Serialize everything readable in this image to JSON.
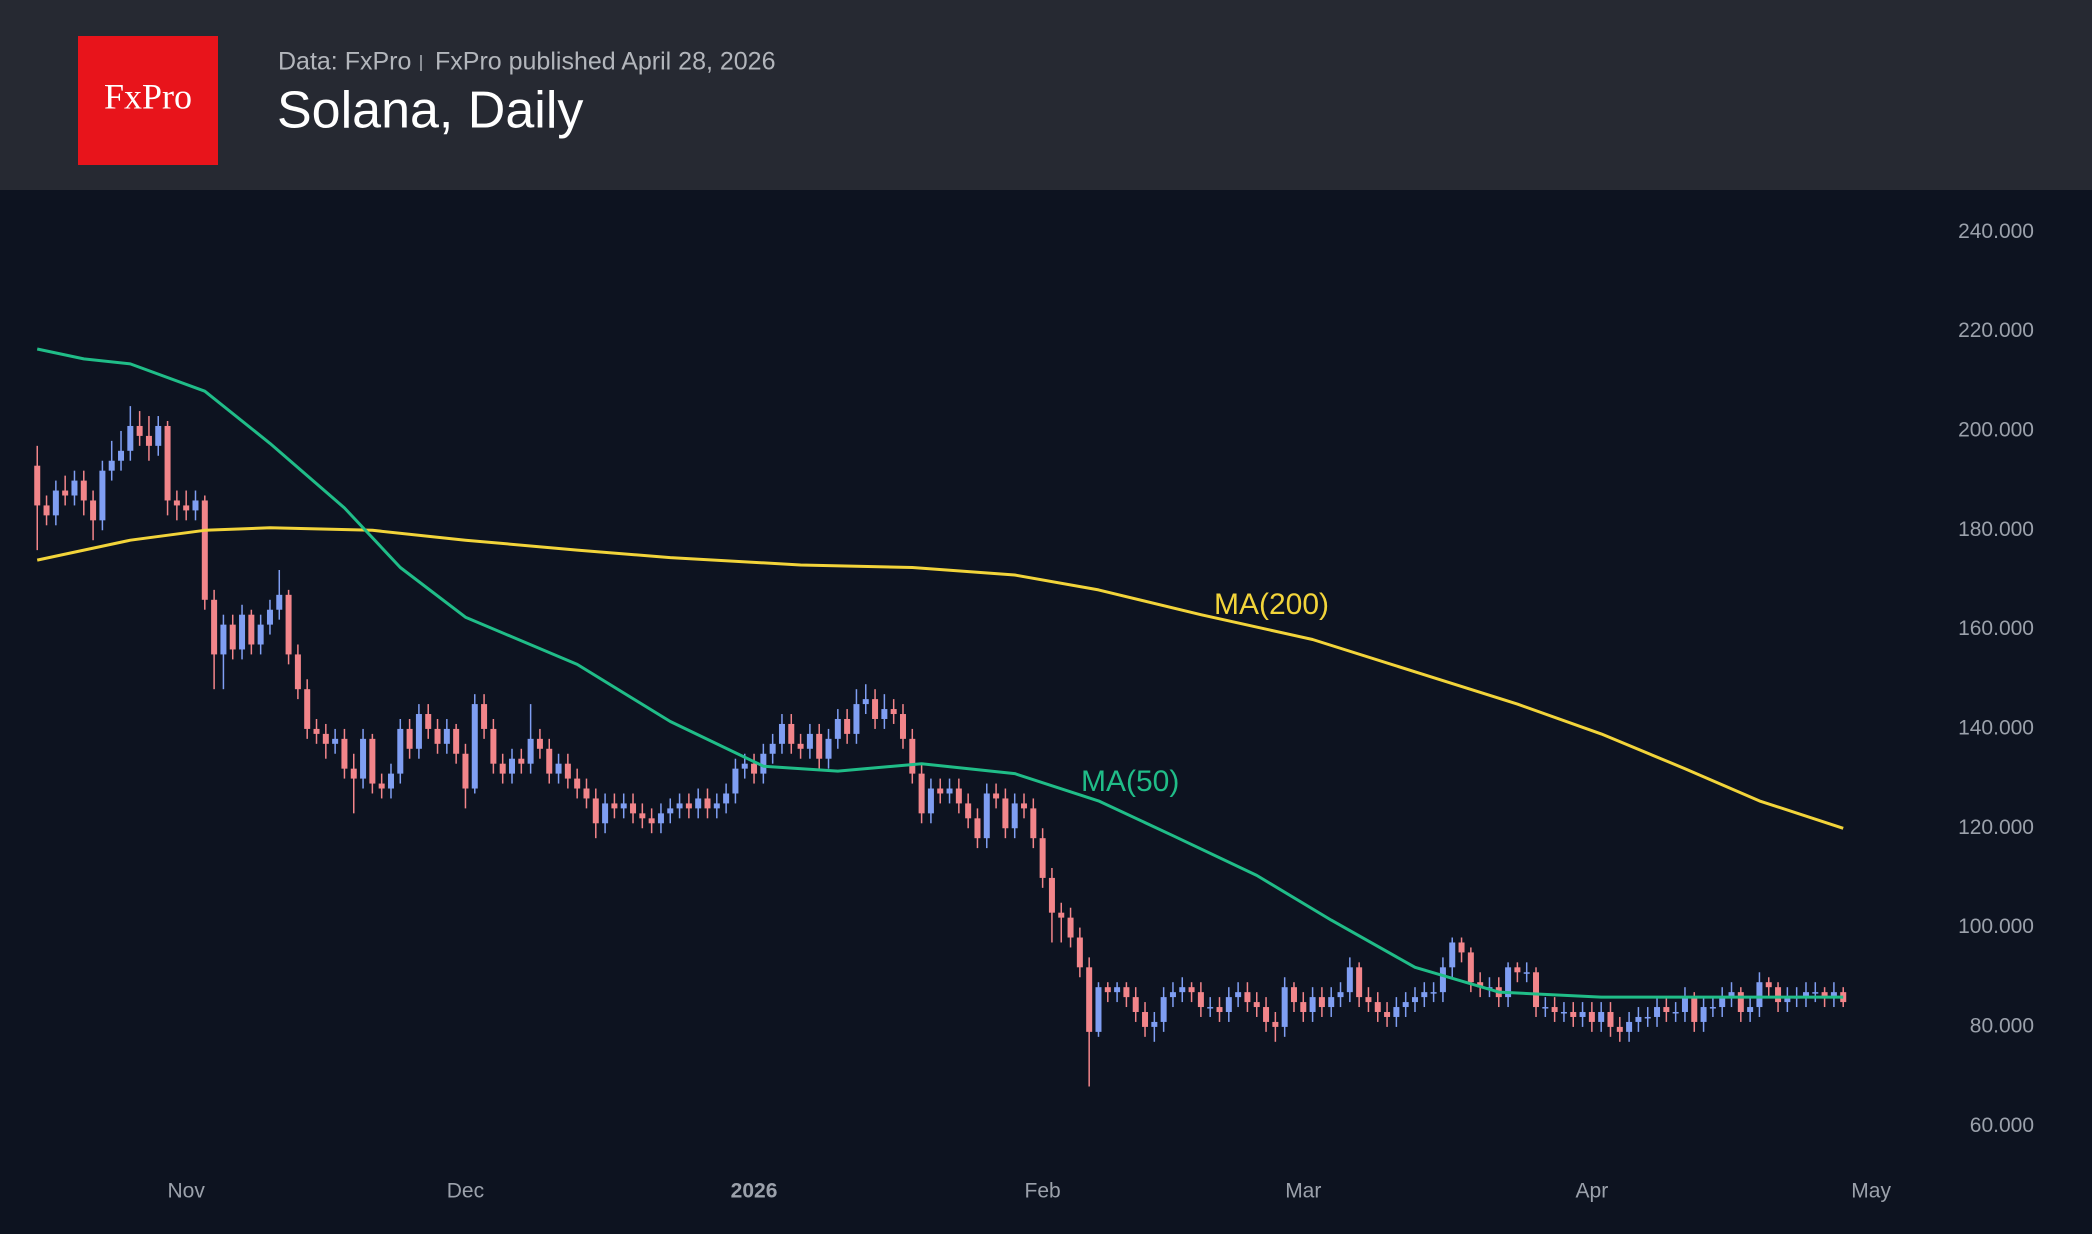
{
  "chart_data": {
    "type": "candlestick",
    "logo": "FxPro",
    "source": "Data: FxPro",
    "published": "FxPro published April 28, 2026",
    "title": "Solana, Daily",
    "up_color": "#7f9ef2",
    "down_color": "#f2858a",
    "x": [
      0,
      1,
      2,
      3,
      4,
      5,
      6,
      7,
      8,
      9,
      10,
      11,
      12,
      13,
      14,
      15,
      16,
      17,
      18,
      19,
      20,
      21,
      22,
      23,
      24,
      25,
      26,
      27,
      28,
      29,
      30,
      31,
      32,
      33,
      34,
      35,
      36,
      37,
      38,
      39,
      40,
      41,
      42,
      43,
      44,
      45,
      46,
      47,
      48,
      49,
      50,
      51,
      52,
      53,
      54,
      55,
      56,
      57,
      58,
      59,
      60,
      61,
      62,
      63,
      64,
      65,
      66,
      67,
      68,
      69,
      70,
      71,
      72,
      73,
      74,
      75,
      76,
      77,
      78,
      79,
      80,
      81,
      82,
      83,
      84,
      85,
      86,
      87,
      88,
      89,
      90,
      91,
      92,
      93,
      94,
      95,
      96,
      97,
      98,
      99,
      100,
      101,
      102,
      103,
      104,
      105,
      106,
      107,
      108,
      109,
      110,
      111,
      112,
      113,
      114,
      115,
      116,
      117,
      118,
      119,
      120,
      121,
      122,
      123,
      124,
      125,
      126,
      127,
      128,
      129,
      130,
      131,
      132,
      133,
      134,
      135,
      136,
      137,
      138,
      139,
      140,
      141,
      142,
      143,
      144,
      145,
      146,
      147,
      148,
      149,
      150,
      151,
      152,
      153,
      154,
      155,
      156,
      157,
      158,
      159,
      160,
      161,
      162,
      163,
      164,
      165,
      166,
      167,
      168,
      169,
      170,
      171,
      172,
      173,
      174,
      175,
      176,
      177,
      178,
      179,
      180,
      181,
      182,
      183,
      184,
      185,
      186,
      187,
      188,
      189,
      190,
      191,
      192,
      193,
      194
    ],
    "open": [
      193,
      185,
      183,
      188,
      187,
      190,
      186,
      182,
      192,
      194,
      196,
      201,
      199,
      197,
      201,
      186,
      185,
      184,
      186,
      166,
      155,
      161,
      156,
      163,
      157,
      161,
      164,
      167,
      155,
      148,
      140,
      139,
      137,
      138,
      132,
      130,
      138,
      129,
      128,
      131,
      140,
      136,
      143,
      140,
      137,
      140,
      135,
      128,
      145,
      140,
      133,
      131,
      134,
      133,
      138,
      136,
      131,
      133,
      130,
      128,
      126,
      121,
      125,
      124,
      125,
      123,
      122,
      121,
      123,
      124,
      125,
      124,
      126,
      124,
      125,
      127,
      132,
      133,
      131,
      135,
      137,
      141,
      137,
      136,
      139,
      134,
      138,
      142,
      139,
      145,
      146,
      142,
      144,
      143,
      138,
      131,
      123,
      128,
      127,
      128,
      125,
      122,
      118,
      127,
      126,
      120,
      125,
      124,
      118,
      110,
      103,
      102,
      98,
      92,
      79,
      88,
      87,
      88,
      86,
      83,
      80,
      81,
      86,
      87,
      88,
      87,
      84,
      84,
      83,
      86,
      87,
      85,
      84,
      81,
      80,
      88,
      85,
      83,
      86,
      84,
      86,
      87,
      92,
      86,
      85,
      83,
      82,
      84,
      85,
      86,
      87,
      87,
      92,
      97,
      95,
      89,
      88,
      88,
      86,
      92,
      91,
      91,
      84,
      84,
      83,
      83,
      82,
      83,
      81,
      83,
      80,
      79,
      81,
      82,
      82,
      84,
      83,
      83,
      86,
      81,
      84,
      84,
      86,
      87,
      83,
      84,
      89,
      88,
      85,
      86,
      86,
      87,
      87,
      86,
      87
    ],
    "high": [
      197,
      187,
      190,
      191,
      192,
      192,
      188,
      194,
      198,
      200,
      205,
      204,
      203,
      203,
      202,
      188,
      188,
      188,
      187,
      168,
      163,
      163,
      165,
      164,
      163,
      166,
      172,
      168,
      157,
      150,
      142,
      141,
      140,
      140,
      135,
      140,
      139,
      131,
      133,
      142,
      142,
      145,
      145,
      142,
      142,
      141,
      137,
      147,
      147,
      142,
      135,
      136,
      136,
      145,
      140,
      138,
      135,
      135,
      132,
      130,
      128,
      127,
      127,
      127,
      127,
      125,
      124,
      125,
      126,
      127,
      127,
      128,
      128,
      127,
      129,
      134,
      135,
      135,
      137,
      139,
      143,
      143,
      139,
      141,
      141,
      140,
      144,
      144,
      148,
      149,
      148,
      147,
      146,
      145,
      140,
      133,
      130,
      130,
      130,
      130,
      127,
      124,
      129,
      129,
      128,
      127,
      127,
      126,
      120,
      112,
      105,
      104,
      100,
      94,
      89,
      89,
      89,
      89,
      88,
      85,
      83,
      88,
      89,
      90,
      89,
      89,
      86,
      86,
      88,
      89,
      89,
      87,
      86,
      83,
      90,
      89,
      87,
      88,
      88,
      88,
      89,
      94,
      93,
      88,
      87,
      85,
      86,
      87,
      88,
      89,
      89,
      94,
      98,
      98,
      96,
      91,
      90,
      90,
      93,
      93,
      93,
      92,
      86,
      86,
      85,
      85,
      85,
      85,
      85,
      85,
      82,
      83,
      84,
      84,
      86,
      86,
      85,
      88,
      87,
      86,
      86,
      88,
      89,
      88,
      86,
      91,
      90,
      89,
      88,
      88,
      89,
      89,
      88,
      89,
      88
    ],
    "low": [
      176,
      181,
      181,
      185,
      185,
      183,
      178,
      180,
      190,
      192,
      194,
      197,
      194,
      195,
      183,
      182,
      182,
      182,
      164,
      148,
      148,
      154,
      154,
      155,
      155,
      159,
      162,
      153,
      146,
      138,
      137,
      134,
      135,
      130,
      123,
      128,
      127,
      126,
      126,
      129,
      134,
      134,
      138,
      135,
      135,
      133,
      124,
      127,
      138,
      131,
      129,
      129,
      131,
      131,
      134,
      129,
      129,
      128,
      126,
      124,
      118,
      119,
      122,
      122,
      121,
      120,
      119,
      119,
      121,
      122,
      122,
      122,
      122,
      122,
      123,
      125,
      130,
      129,
      129,
      133,
      135,
      135,
      134,
      134,
      132,
      132,
      136,
      137,
      137,
      143,
      140,
      140,
      141,
      136,
      129,
      121,
      121,
      125,
      125,
      123,
      120,
      116,
      116,
      124,
      118,
      118,
      122,
      116,
      108,
      97,
      97,
      96,
      90,
      68,
      78,
      85,
      85,
      84,
      81,
      78,
      77,
      79,
      84,
      85,
      85,
      82,
      82,
      81,
      81,
      84,
      83,
      82,
      79,
      77,
      78,
      83,
      81,
      81,
      82,
      82,
      84,
      85,
      84,
      83,
      81,
      80,
      80,
      82,
      83,
      84,
      85,
      85,
      90,
      93,
      87,
      86,
      86,
      84,
      84,
      89,
      89,
      82,
      82,
      81,
      81,
      80,
      80,
      79,
      79,
      78,
      77,
      77,
      79,
      80,
      80,
      81,
      81,
      81,
      79,
      79,
      82,
      82,
      84,
      81,
      81,
      82,
      86,
      83,
      83,
      84,
      84,
      85,
      84,
      84,
      84
    ],
    "close": [
      185,
      183,
      188,
      187,
      190,
      186,
      182,
      192,
      194,
      196,
      201,
      199,
      197,
      201,
      186,
      185,
      184,
      186,
      166,
      155,
      161,
      156,
      163,
      157,
      161,
      164,
      167,
      155,
      148,
      140,
      139,
      137,
      138,
      132,
      130,
      138,
      129,
      128,
      131,
      140,
      136,
      143,
      140,
      137,
      140,
      135,
      128,
      145,
      140,
      133,
      131,
      134,
      133,
      138,
      136,
      131,
      133,
      130,
      128,
      126,
      121,
      125,
      124,
      125,
      123,
      122,
      121,
      123,
      124,
      125,
      124,
      126,
      124,
      125,
      127,
      132,
      133,
      131,
      135,
      137,
      141,
      137,
      136,
      139,
      134,
      138,
      142,
      139,
      145,
      146,
      142,
      144,
      143,
      138,
      131,
      123,
      128,
      127,
      128,
      125,
      122,
      118,
      127,
      126,
      120,
      125,
      124,
      118,
      110,
      103,
      102,
      98,
      92,
      79,
      88,
      87,
      88,
      86,
      83,
      80,
      81,
      86,
      87,
      88,
      87,
      84,
      84,
      83,
      86,
      87,
      85,
      84,
      81,
      80,
      88,
      85,
      83,
      86,
      84,
      86,
      87,
      92,
      86,
      85,
      83,
      82,
      84,
      85,
      86,
      87,
      87,
      92,
      97,
      95,
      89,
      88,
      88,
      86,
      92,
      91,
      91,
      84,
      84,
      83,
      83,
      82,
      83,
      81,
      83,
      80,
      79,
      81,
      82,
      82,
      84,
      83,
      83,
      86,
      81,
      84,
      84,
      86,
      87,
      83,
      84,
      89,
      88,
      85,
      86,
      86,
      87,
      87,
      86,
      87,
      85
    ],
    "series": [
      {
        "name": "MA(200)",
        "color": "#f2d43a",
        "x": [
          0,
          10,
          18,
          25,
          36,
          46,
          58,
          68,
          82,
          94,
          105,
          114,
          125,
          137,
          148,
          159,
          168,
          177,
          185,
          194
        ],
        "values": [
          174,
          178,
          180,
          180.5,
          180,
          178,
          176,
          174.5,
          173,
          172.5,
          171,
          168,
          163,
          158,
          151.5,
          145,
          139,
          132,
          125.5,
          120
        ]
      },
      {
        "name": "MA(50)",
        "color": "#20bd88",
        "x": [
          0,
          5,
          10,
          18,
          25,
          33,
          39,
          46,
          58,
          68,
          78,
          86,
          95,
          105,
          114,
          122,
          131,
          139,
          148,
          157,
          168,
          182,
          194
        ],
        "values": [
          216.5,
          214.5,
          213.5,
          208,
          197.5,
          184.5,
          172.5,
          162.5,
          153,
          141.5,
          132.5,
          131.5,
          133,
          131,
          125.5,
          118.5,
          110.5,
          101.5,
          92,
          87,
          86,
          86,
          86
        ]
      }
    ],
    "xlim": [
      -4,
      203
    ],
    "xticks": [
      {
        "value": 16,
        "label": "Nov"
      },
      {
        "value": 46,
        "label": "Dec"
      },
      {
        "value": 77,
        "label": "2026"
      },
      {
        "value": 108,
        "label": "Feb"
      },
      {
        "value": 136,
        "label": "Mar"
      },
      {
        "value": 167,
        "label": "Apr"
      },
      {
        "value": 197,
        "label": "May"
      }
    ],
    "ylim": [
      53,
      246.5
    ],
    "yticks": [
      {
        "value": 60,
        "label": "60.000"
      },
      {
        "value": 80,
        "label": "80.000"
      },
      {
        "value": 100,
        "label": "100.000"
      },
      {
        "value": 120,
        "label": "120.000"
      },
      {
        "value": 140,
        "label": "140.000"
      },
      {
        "value": 160,
        "label": "160.000"
      },
      {
        "value": 180,
        "label": "180.000"
      },
      {
        "value": 200,
        "label": "200.000"
      },
      {
        "value": 220,
        "label": "220.000"
      },
      {
        "value": 240,
        "label": "240.000"
      }
    ]
  }
}
